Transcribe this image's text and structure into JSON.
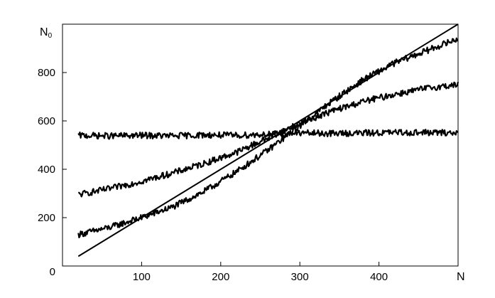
{
  "chart_data": {
    "type": "line",
    "title": "",
    "xlabel": "N",
    "ylabel": {
      "main": "N",
      "sub": "0"
    },
    "xlim": [
      0,
      500
    ],
    "ylim": [
      0,
      1000
    ],
    "x_ticks": [
      100,
      200,
      300,
      400
    ],
    "x_tick_labels": [
      "100",
      "200",
      "300",
      "400"
    ],
    "y_ticks": [
      0,
      200,
      400,
      600,
      800
    ],
    "y_tick_labels": [
      "0",
      "200",
      "400",
      "600",
      "800"
    ],
    "grid": false,
    "legend": "none",
    "line_color": "#000000",
    "series": [
      {
        "x": [
          20,
          500
        ],
        "y": [
          40,
          1000
        ]
      },
      {
        "x": [
          20,
          60,
          100,
          140,
          180,
          220,
          260,
          300,
          340,
          380,
          420,
          460,
          500
        ],
        "y": [
          130,
          160,
          200,
          245,
          310,
          390,
          480,
          580,
          680,
          770,
          840,
          890,
          940
        ]
      },
      {
        "x": [
          20,
          60,
          100,
          140,
          180,
          220,
          260,
          300,
          340,
          380,
          420,
          460,
          500
        ],
        "y": [
          295,
          320,
          350,
          385,
          425,
          470,
          530,
          590,
          640,
          680,
          710,
          735,
          750
        ]
      },
      {
        "x": [
          20,
          60,
          100,
          140,
          180,
          220,
          260,
          300,
          340,
          380,
          420,
          460,
          500
        ],
        "y": [
          540,
          538,
          540,
          538,
          542,
          540,
          545,
          550,
          548,
          550,
          552,
          552,
          550
        ]
      }
    ]
  }
}
